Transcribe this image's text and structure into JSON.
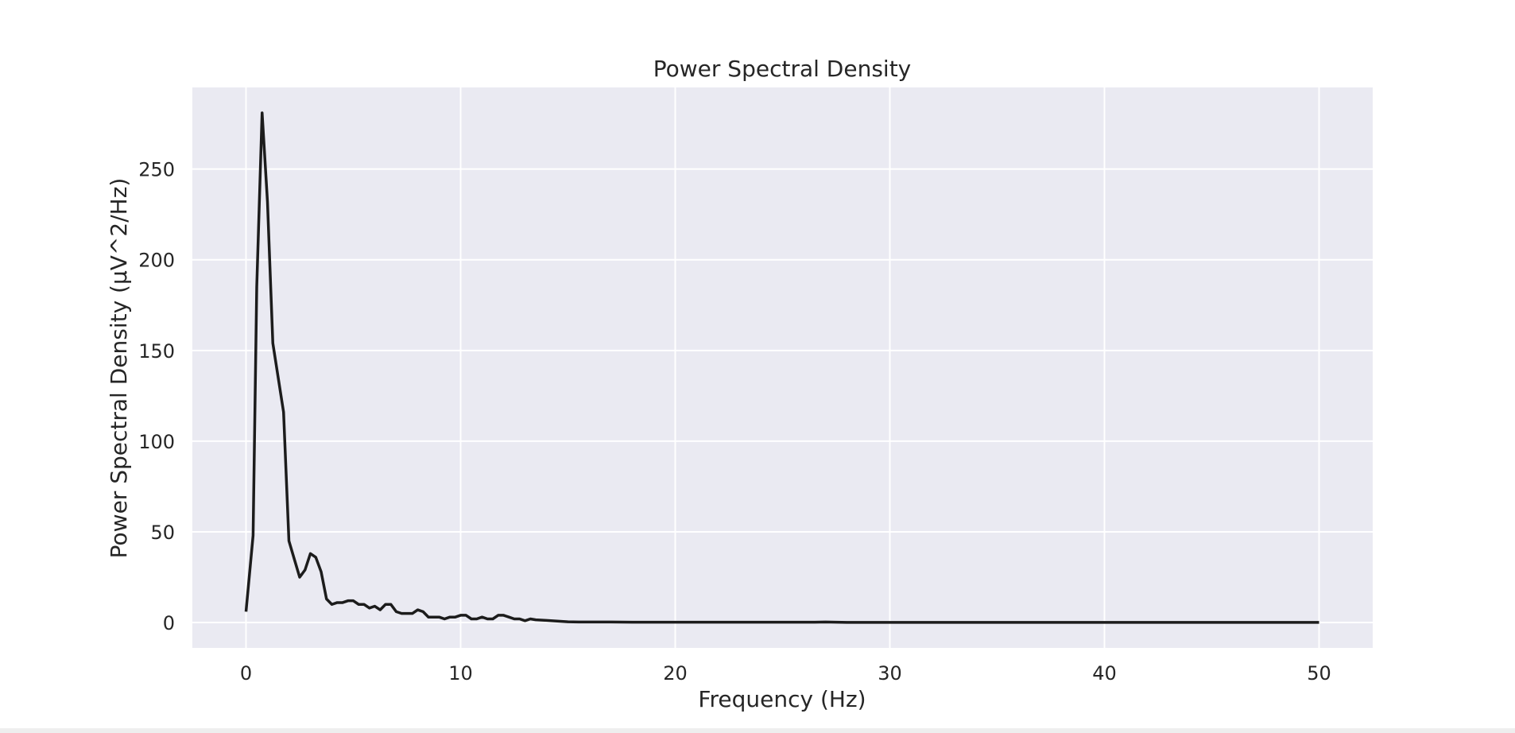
{
  "chart_data": {
    "type": "line",
    "title": "Power Spectral Density",
    "xlabel": "Frequency (Hz)",
    "ylabel": "Power Spectral Density (µV^2/Hz)",
    "xlim": [
      -2.5,
      52.5
    ],
    "ylim": [
      -14,
      295
    ],
    "xticks": [
      0,
      10,
      20,
      30,
      40,
      50
    ],
    "yticks": [
      0,
      50,
      100,
      150,
      200,
      250
    ],
    "grid": true,
    "colors": {
      "background": "#eaeaf2",
      "grid": "#ffffff",
      "line": "#1c1c1c"
    },
    "series": [
      {
        "x": [
          0,
          0.33,
          0.5,
          0.75,
          1.0,
          1.25,
          1.5,
          1.75,
          2.0,
          2.25,
          2.5,
          2.75,
          3.0,
          3.25,
          3.5,
          3.75,
          4.0,
          4.25,
          4.5,
          4.75,
          5.0,
          5.25,
          5.5,
          5.75,
          6.0,
          6.25,
          6.5,
          6.75,
          7.0,
          7.25,
          7.5,
          7.75,
          8.0,
          8.25,
          8.5,
          8.75,
          9.0,
          9.25,
          9.5,
          9.75,
          10.0,
          10.25,
          10.5,
          10.75,
          11.0,
          11.25,
          11.5,
          11.75,
          12.0,
          12.25,
          12.5,
          12.75,
          13.0,
          13.25,
          13.5,
          14.0,
          14.5,
          15.0,
          15.5,
          16.0,
          16.5,
          17.0,
          18.0,
          19.0,
          20.0,
          21.0,
          22.0,
          23.0,
          24.0,
          25.0,
          26.0,
          26.5,
          27.0,
          27.5,
          28.0,
          30.0,
          35.0,
          40.0,
          45.0,
          50.0
        ],
        "y": [
          6,
          48,
          185,
          281,
          232,
          154,
          135,
          116,
          45,
          35,
          25,
          29,
          38,
          36,
          28,
          13,
          10,
          11,
          11,
          12,
          12,
          10,
          10,
          8,
          9,
          7,
          10,
          10,
          6,
          5,
          5,
          5,
          7,
          6,
          3,
          3,
          3,
          2,
          3,
          3,
          4,
          4,
          2,
          2,
          3,
          2,
          2,
          4,
          4,
          3,
          2,
          2,
          1,
          2,
          1.5,
          1.2,
          0.8,
          0.4,
          0.3,
          0.3,
          0.3,
          0.3,
          0.2,
          0.2,
          0.2,
          0.2,
          0.2,
          0.2,
          0.2,
          0.2,
          0.2,
          0.2,
          0.3,
          0.2,
          0.1,
          0.1,
          0.1,
          0.1,
          0.1,
          0.1
        ]
      }
    ]
  }
}
